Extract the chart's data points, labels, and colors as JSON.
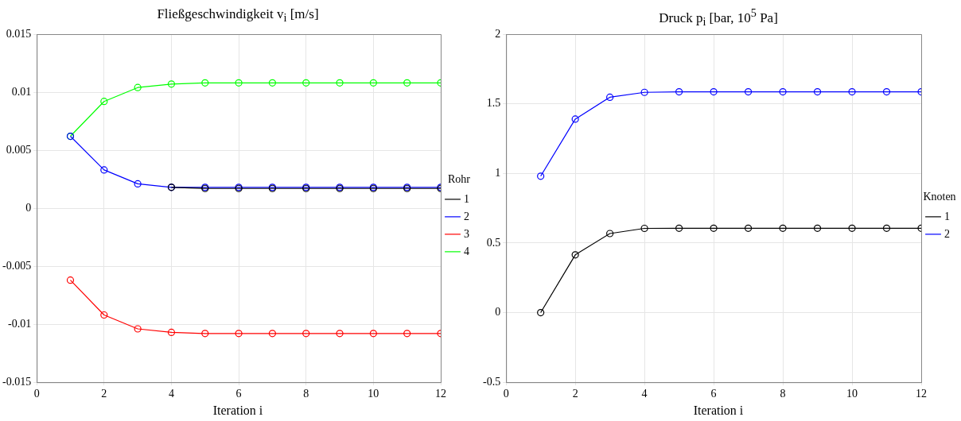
{
  "chart_data": [
    {
      "type": "line",
      "title": "Fließgeschwindigkeit v$_{i}$ [m/s]",
      "xlabel": "Iteration i",
      "legend_title": "Rohr",
      "x": [
        1,
        2,
        3,
        4,
        5,
        6,
        7,
        8,
        9,
        10,
        11,
        12
      ],
      "series": [
        {
          "name": "1",
          "color": "#000000",
          "values": [
            null,
            null,
            null,
            0.0018,
            0.0017,
            0.0017,
            0.0017,
            0.0017,
            0.0017,
            0.0017,
            0.0017,
            0.0017
          ]
        },
        {
          "name": "2",
          "color": "#0000ff",
          "values": [
            0.0062,
            0.0033,
            0.0021,
            0.0018,
            0.0018,
            0.0018,
            0.0018,
            0.0018,
            0.0018,
            0.0018,
            0.0018,
            0.0018
          ]
        },
        {
          "name": "3",
          "color": "#ff0000",
          "values": [
            -0.0062,
            -0.0092,
            -0.0104,
            -0.0107,
            -0.0108,
            -0.0108,
            -0.0108,
            -0.0108,
            -0.0108,
            -0.0108,
            -0.0108,
            -0.0108
          ]
        },
        {
          "name": "4",
          "color": "#00ff00",
          "values": [
            0.0062,
            0.0092,
            0.0104,
            0.0107,
            0.0108,
            0.0108,
            0.0108,
            0.0108,
            0.0108,
            0.0108,
            0.0108,
            0.0108
          ]
        }
      ],
      "xlim": [
        0,
        12
      ],
      "xticks": [
        0,
        2,
        4,
        6,
        8,
        10,
        12
      ],
      "ylim": [
        -0.015,
        0.015
      ],
      "yticks": [
        -0.015,
        -0.01,
        -0.005,
        0,
        0.005,
        0.01,
        0.015
      ],
      "grid": true,
      "legend": "right",
      "marker": "circle",
      "line_style": "solid"
    },
    {
      "type": "line",
      "title": "Druck p$_{i}$ [bar, 10$^{5}$ Pa]",
      "xlabel": "Iteration i",
      "legend_title": "Knoten",
      "x": [
        1,
        2,
        3,
        4,
        5,
        6,
        7,
        8,
        9,
        10,
        11,
        12
      ],
      "series": [
        {
          "name": "1",
          "color": "#000000",
          "values": [
            0,
            0.415,
            0.568,
            0.605,
            0.606,
            0.606,
            0.606,
            0.606,
            0.606,
            0.606,
            0.606,
            0.606
          ]
        },
        {
          "name": "2",
          "color": "#0000ff",
          "values": [
            0.98,
            1.39,
            1.547,
            1.582,
            1.586,
            1.586,
            1.586,
            1.586,
            1.586,
            1.586,
            1.586,
            1.586
          ]
        }
      ],
      "xlim": [
        0,
        12
      ],
      "xticks": [
        0,
        2,
        4,
        6,
        8,
        10,
        12
      ],
      "ylim": [
        -0.5,
        2
      ],
      "yticks": [
        -0.5,
        0,
        0.5,
        1,
        1.5,
        2
      ],
      "grid": true,
      "legend": "right",
      "marker": "circle",
      "line_style": "solid"
    }
  ]
}
